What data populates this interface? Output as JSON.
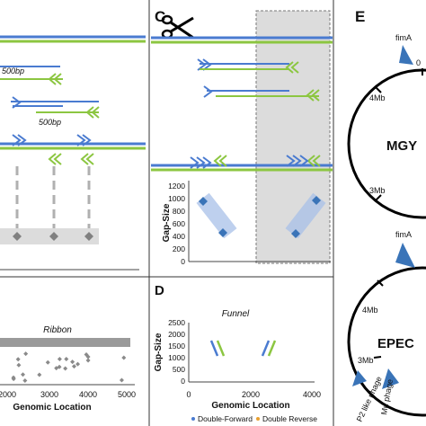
{
  "panels": {
    "c": {
      "letter": "C",
      "gap_axis": {
        "label": "Gap-Size",
        "ticks": [
          "1200",
          "1000",
          "800",
          "600",
          "400",
          "200",
          "0"
        ]
      }
    },
    "d": {
      "letter": "D",
      "series_label": "Funnel",
      "y_axis": {
        "label": "Gap-Size",
        "ticks": [
          "2500",
          "2000",
          "1500",
          "1000",
          "500",
          "0"
        ]
      },
      "x_axis": {
        "label": "Genomic Location",
        "ticks": [
          "0",
          "2000",
          "4000"
        ]
      }
    },
    "e": {
      "letter": "E"
    },
    "b": {
      "series_label": "Ribbon",
      "x_axis": {
        "label": "Genomic Location",
        "ticks": [
          "2000",
          "3000",
          "4000",
          "5000"
        ]
      }
    }
  },
  "left": {
    "fragment_labels": [
      "500bp",
      "500bp"
    ]
  },
  "legend": [
    {
      "label": "Double-Forward",
      "color": "#4a7bd0"
    },
    {
      "label": "Double Reverse",
      "color": "#8cc641"
    }
  ],
  "genomes": {
    "top": {
      "label": "MGY",
      "ticks": [
        "0",
        "4Mb",
        "3Mb"
      ],
      "marker": "fimA"
    },
    "bottom": {
      "label": "EPEC",
      "ticks": [
        "4Mb",
        "3Mb"
      ],
      "markers": [
        "fimA",
        "P2 like phage",
        "Mu phage"
      ]
    }
  },
  "colors": {
    "blue": "#4a7bd0",
    "green": "#8cc641",
    "marker": "#3a74b8",
    "shade": "#dcdcdc",
    "gray_point": "#8a8a8a"
  }
}
